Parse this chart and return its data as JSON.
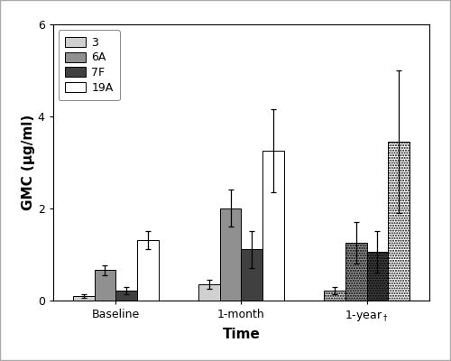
{
  "title": "",
  "xlabel": "Time",
  "ylabel": "GMC (μg/ml)",
  "ylim": [
    0,
    6
  ],
  "yticks": [
    0,
    2,
    4,
    6
  ],
  "groups": [
    "Baseline",
    "1-month",
    "1-year†"
  ],
  "serotypes": [
    "3",
    "6A",
    "7F",
    "19A"
  ],
  "bar_values": [
    [
      0.08,
      0.65,
      0.2,
      1.3
    ],
    [
      0.35,
      2.0,
      1.1,
      3.25
    ],
    [
      0.2,
      1.25,
      1.05,
      3.45
    ]
  ],
  "bar_errors": [
    [
      0.04,
      0.1,
      0.08,
      0.2
    ],
    [
      0.1,
      0.4,
      0.4,
      0.9
    ],
    [
      0.08,
      0.45,
      0.45,
      1.55
    ]
  ],
  "colors": [
    "#d0d0d0",
    "#909090",
    "#404040",
    "#ffffff"
  ],
  "edgecolor": "#000000",
  "bar_width": 0.17,
  "figsize": [
    5.0,
    4.0
  ],
  "dpi": 100,
  "background_color": "#ffffff",
  "legend_labels": [
    "3",
    "6A",
    "7F",
    "19A"
  ],
  "outer_border_color": "#aaaaaa",
  "legend_fontsize": 9,
  "axis_label_fontsize": 11,
  "tick_label_fontsize": 9
}
